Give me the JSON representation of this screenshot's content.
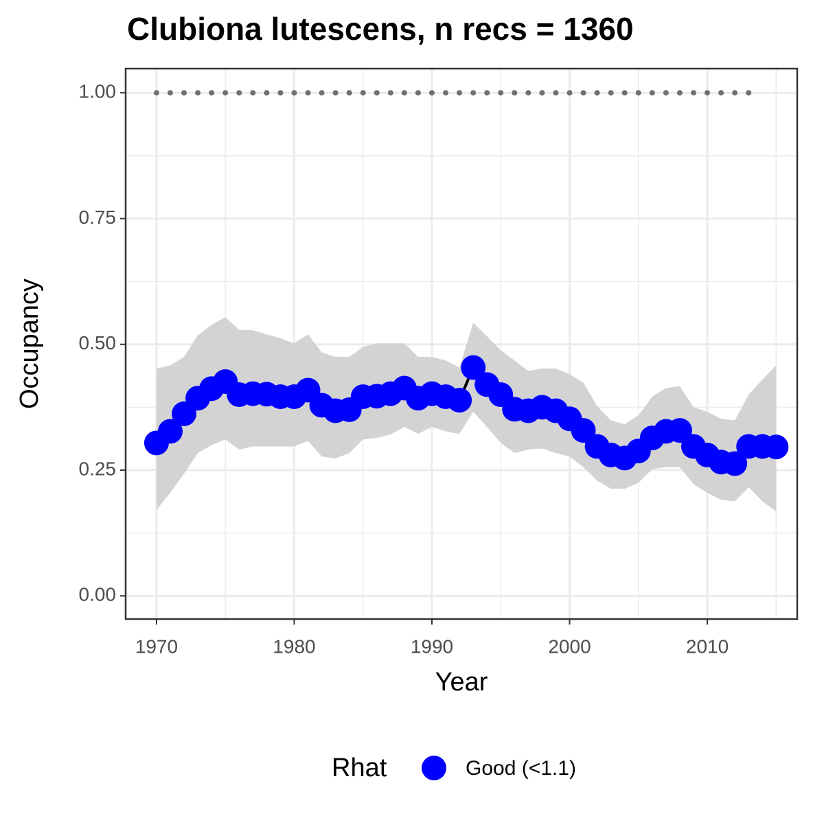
{
  "chart_data": {
    "type": "line",
    "title": "Clubiona lutescens, n recs = 1360",
    "x_label": "Year",
    "y_label": "Occupancy",
    "x": [
      1970,
      1971,
      1972,
      1973,
      1974,
      1975,
      1976,
      1977,
      1978,
      1979,
      1980,
      1981,
      1982,
      1983,
      1984,
      1985,
      1986,
      1987,
      1988,
      1989,
      1990,
      1991,
      1992,
      1993,
      1994,
      1995,
      1996,
      1997,
      1998,
      1999,
      2000,
      2001,
      2002,
      2003,
      2004,
      2005,
      2006,
      2007,
      2008,
      2009,
      2010,
      2011,
      2012,
      2013,
      2014,
      2015
    ],
    "series": [
      {
        "name": "Good (<1.1)",
        "color": "#0000ff",
        "line_color": "#000000",
        "values": [
          0.304,
          0.327,
          0.362,
          0.393,
          0.412,
          0.426,
          0.4,
          0.402,
          0.401,
          0.396,
          0.396,
          0.409,
          0.379,
          0.368,
          0.37,
          0.396,
          0.397,
          0.402,
          0.413,
          0.393,
          0.402,
          0.396,
          0.389,
          0.454,
          0.42,
          0.4,
          0.371,
          0.368,
          0.375,
          0.368,
          0.352,
          0.329,
          0.297,
          0.28,
          0.274,
          0.288,
          0.314,
          0.327,
          0.329,
          0.297,
          0.28,
          0.266,
          0.263,
          0.297,
          0.297,
          0.296
        ],
        "lower": [
          0.171,
          0.205,
          0.243,
          0.284,
          0.3,
          0.311,
          0.291,
          0.297,
          0.297,
          0.297,
          0.297,
          0.308,
          0.277,
          0.273,
          0.284,
          0.311,
          0.314,
          0.321,
          0.336,
          0.322,
          0.336,
          0.327,
          0.322,
          0.366,
          0.336,
          0.304,
          0.284,
          0.291,
          0.293,
          0.284,
          0.277,
          0.256,
          0.229,
          0.213,
          0.213,
          0.225,
          0.252,
          0.256,
          0.256,
          0.222,
          0.205,
          0.191,
          0.188,
          0.216,
          0.188,
          0.168
        ],
        "upper": [
          0.452,
          0.458,
          0.475,
          0.518,
          0.539,
          0.554,
          0.529,
          0.528,
          0.52,
          0.512,
          0.502,
          0.52,
          0.484,
          0.475,
          0.475,
          0.495,
          0.502,
          0.502,
          0.502,
          0.475,
          0.475,
          0.468,
          0.454,
          0.543,
          0.516,
          0.488,
          0.468,
          0.447,
          0.452,
          0.452,
          0.441,
          0.424,
          0.377,
          0.349,
          0.341,
          0.359,
          0.396,
          0.413,
          0.417,
          0.375,
          0.366,
          0.352,
          0.349,
          0.4,
          0.43,
          0.458
        ]
      }
    ],
    "record_years": {
      "color": "#707070",
      "x": [
        1970,
        1971,
        1972,
        1973,
        1974,
        1975,
        1976,
        1977,
        1978,
        1979,
        1980,
        1981,
        1982,
        1983,
        1984,
        1985,
        1986,
        1987,
        1988,
        1989,
        1990,
        1991,
        1992,
        1993,
        1994,
        1995,
        1996,
        1997,
        1998,
        1999,
        2000,
        2001,
        2002,
        2003,
        2004,
        2005,
        2006,
        2007,
        2008,
        2009,
        2010,
        2011,
        2012,
        2013
      ],
      "values": [
        1,
        1,
        1,
        1,
        1,
        1,
        1,
        1,
        1,
        1,
        1,
        1,
        1,
        1,
        1,
        1,
        1,
        1,
        1,
        1,
        1,
        1,
        1,
        1,
        1,
        1,
        1,
        1,
        1,
        1,
        1,
        1,
        1,
        1,
        1,
        1,
        1,
        1,
        1,
        1,
        1,
        1,
        1,
        1
      ]
    },
    "ribbon_color": "#d3d3d3",
    "xlim": [
      1967.76,
      2016.53
    ],
    "ylim": [
      -0.046,
      1.048
    ],
    "xticks": [
      1970,
      1980,
      1990,
      2000,
      2010
    ],
    "xticks_minor": [
      1975,
      1985,
      1995,
      2005,
      2015
    ],
    "yticks": [
      {
        "value": 0,
        "label": "0.00"
      },
      {
        "value": 0.25,
        "label": "0.25"
      },
      {
        "value": 0.5,
        "label": "0.50"
      },
      {
        "value": 0.75,
        "label": "0.75"
      },
      {
        "value": 1,
        "label": "1.00"
      }
    ],
    "yticks_minor": [
      0.125,
      0.375,
      0.625,
      0.875
    ],
    "grid": true,
    "legend_title": "Rhat",
    "legend_position": "bottom"
  }
}
